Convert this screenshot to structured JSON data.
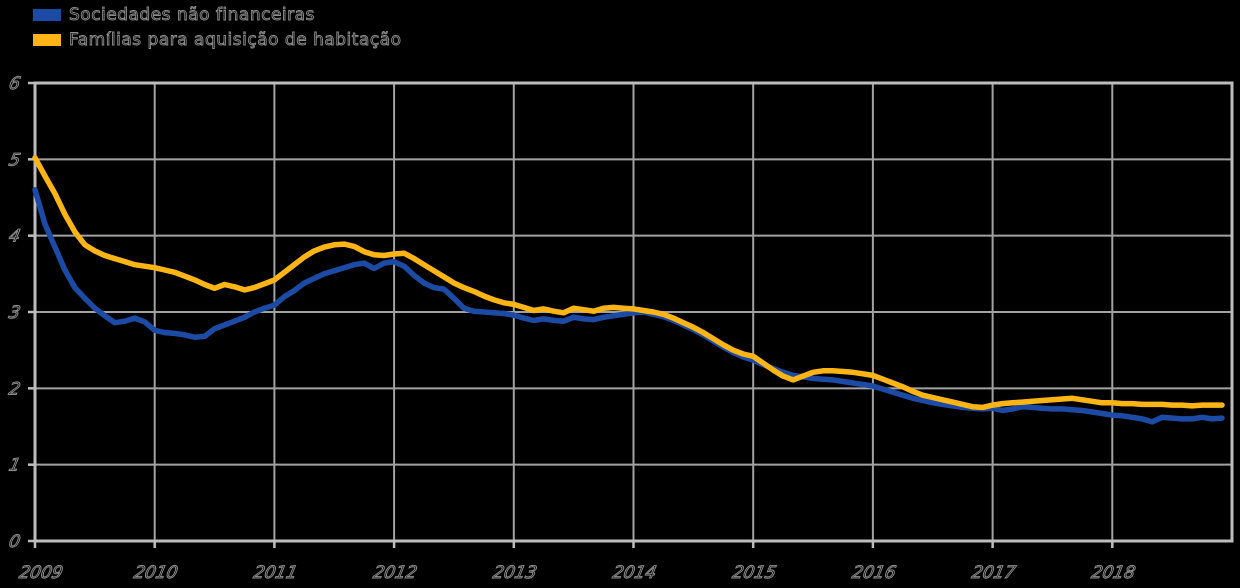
{
  "legend": {
    "items": [
      {
        "label": "Sociedades não financeiras",
        "color": "#1b4ba5"
      },
      {
        "label": "Famílias para aquisição de habitação",
        "color": "#fdb515"
      }
    ]
  },
  "colors": {
    "background": "#000000",
    "axis_frame": "#bdbdbd",
    "gridline": "#a2a2a2",
    "tick_text_outline": "#8d8d8d",
    "series_blue": "#1b4ba5",
    "series_yellow": "#fdb515"
  },
  "chart_data": {
    "type": "line",
    "title": "",
    "xlabel": "",
    "ylabel": "",
    "ylim": [
      0,
      6
    ],
    "y_tick_labels": [
      "0",
      "1",
      "2",
      "3",
      "4",
      "5",
      "6"
    ],
    "x_tick_labels": [
      "2009",
      "2010",
      "2011",
      "2012",
      "2013",
      "2014",
      "2015",
      "2016",
      "2017",
      "2018"
    ],
    "frequency": "monthly",
    "x_start": "2009-01",
    "x_end": "2018-12",
    "grid": "on",
    "legend_position": "top-left",
    "series": [
      {
        "name": "Sociedades não financeiras",
        "color": "#1b4ba5",
        "values": [
          4.6,
          4.15,
          3.85,
          3.55,
          3.32,
          3.18,
          3.05,
          2.95,
          2.86,
          2.88,
          2.92,
          2.87,
          2.76,
          2.73,
          2.72,
          2.7,
          2.67,
          2.68,
          2.78,
          2.83,
          2.88,
          2.93,
          3.0,
          3.05,
          3.09,
          3.2,
          3.28,
          3.38,
          3.44,
          3.5,
          3.54,
          3.58,
          3.62,
          3.64,
          3.57,
          3.64,
          3.66,
          3.6,
          3.48,
          3.38,
          3.32,
          3.3,
          3.18,
          3.05,
          3.01,
          3.0,
          2.99,
          2.98,
          2.96,
          2.92,
          2.89,
          2.91,
          2.89,
          2.88,
          2.93,
          2.91,
          2.9,
          2.93,
          2.95,
          2.97,
          2.99,
          3.0,
          2.97,
          2.94,
          2.89,
          2.83,
          2.77,
          2.7,
          2.62,
          2.54,
          2.47,
          2.41,
          2.37,
          2.31,
          2.26,
          2.21,
          2.17,
          2.15,
          2.13,
          2.12,
          2.11,
          2.09,
          2.07,
          2.05,
          2.03,
          1.99,
          1.95,
          1.91,
          1.87,
          1.84,
          1.81,
          1.79,
          1.77,
          1.75,
          1.74,
          1.73,
          1.74,
          1.71,
          1.73,
          1.76,
          1.75,
          1.74,
          1.73,
          1.73,
          1.72,
          1.71,
          1.69,
          1.67,
          1.65,
          1.64,
          1.62,
          1.6,
          1.56,
          1.62,
          1.61,
          1.6,
          1.6,
          1.62,
          1.6,
          1.61
        ]
      },
      {
        "name": "Famílias para aquisição de habitação",
        "color": "#fdb515",
        "values": [
          5.02,
          4.78,
          4.55,
          4.28,
          4.05,
          3.88,
          3.8,
          3.74,
          3.7,
          3.66,
          3.62,
          3.6,
          3.58,
          3.55,
          3.52,
          3.47,
          3.42,
          3.36,
          3.31,
          3.36,
          3.33,
          3.29,
          3.32,
          3.37,
          3.42,
          3.52,
          3.62,
          3.72,
          3.8,
          3.85,
          3.88,
          3.89,
          3.86,
          3.79,
          3.75,
          3.74,
          3.76,
          3.77,
          3.7,
          3.62,
          3.54,
          3.46,
          3.38,
          3.32,
          3.27,
          3.21,
          3.16,
          3.12,
          3.1,
          3.06,
          3.02,
          3.04,
          3.01,
          2.99,
          3.05,
          3.03,
          3.01,
          3.05,
          3.06,
          3.05,
          3.04,
          3.02,
          3.0,
          2.97,
          2.92,
          2.86,
          2.8,
          2.73,
          2.65,
          2.57,
          2.5,
          2.45,
          2.42,
          2.33,
          2.24,
          2.16,
          2.11,
          2.16,
          2.21,
          2.23,
          2.23,
          2.22,
          2.21,
          2.19,
          2.17,
          2.12,
          2.07,
          2.02,
          1.96,
          1.91,
          1.88,
          1.85,
          1.82,
          1.79,
          1.76,
          1.75,
          1.78,
          1.8,
          1.81,
          1.82,
          1.83,
          1.84,
          1.85,
          1.86,
          1.87,
          1.85,
          1.83,
          1.81,
          1.81,
          1.8,
          1.8,
          1.79,
          1.79,
          1.79,
          1.78,
          1.78,
          1.77,
          1.78,
          1.78,
          1.78
        ]
      }
    ]
  }
}
